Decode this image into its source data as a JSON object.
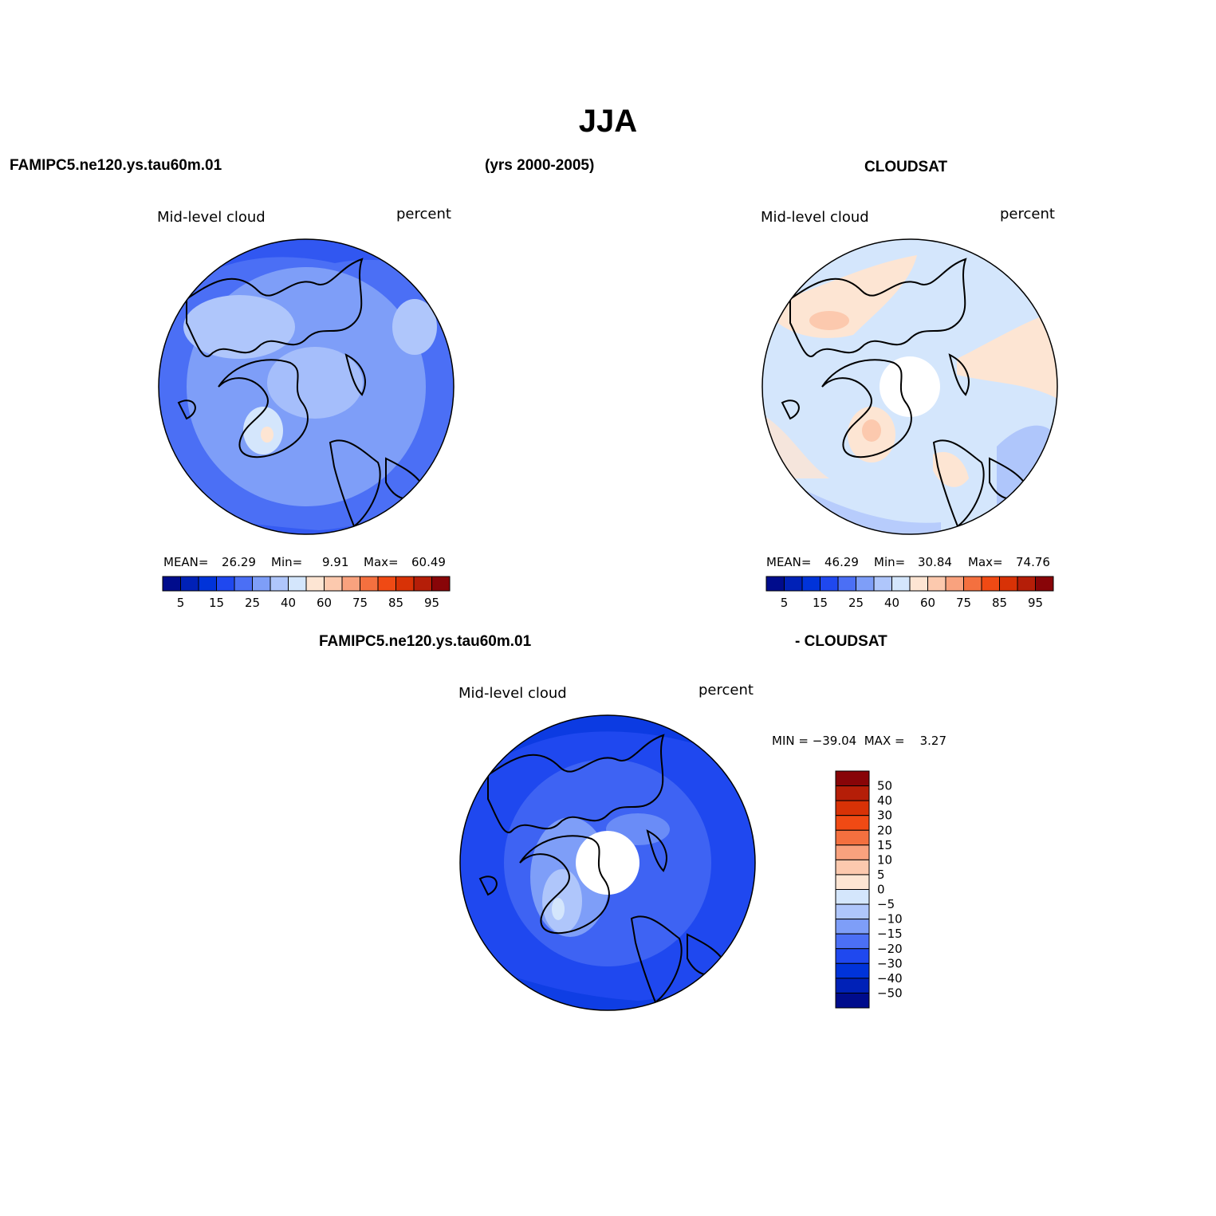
{
  "title": "JJA",
  "header": {
    "left_case": "FAMIPC5.ne120.ys.tau60m.01",
    "years": "(yrs 2000-2005)",
    "right_case": "CLOUDSAT"
  },
  "panels": [
    {
      "variable": "Mid-level cloud",
      "units": "percent",
      "stats": {
        "mean_label": "MEAN=",
        "mean": "26.29",
        "min_label": "Min=",
        "min": "9.91",
        "max_label": "Max=",
        "max": "60.49"
      }
    },
    {
      "variable": "Mid-level cloud",
      "units": "percent",
      "stats": {
        "mean_label": "MEAN=",
        "mean": "46.29",
        "min_label": "Min=",
        "min": "30.84",
        "max_label": "Max=",
        "max": "74.76"
      }
    }
  ],
  "diff_panel": {
    "case_label": "FAMIPC5.ne120.ys.tau60m.01",
    "minus_label": "- CLOUDSAT",
    "variable": "Mid-level cloud",
    "units": "percent",
    "minmax": "MIN = −39.04  MAX =    3.27"
  },
  "colorbar_abs": {
    "colors": [
      "#000c8c",
      "#0021b7",
      "#0033d9",
      "#1f48ef",
      "#4b6ff5",
      "#7e9ef8",
      "#afc6fb",
      "#d4e6fc",
      "#fde5d3",
      "#fcc9ae",
      "#f9a27e",
      "#f4703f",
      "#f04a14",
      "#d83206",
      "#b51e08",
      "#880508"
    ],
    "tick_labels": [
      "5",
      "15",
      "25",
      "40",
      "60",
      "75",
      "85",
      "95"
    ]
  },
  "colorbar_diff": {
    "colors": [
      "#880508",
      "#b51e08",
      "#d83206",
      "#f04a14",
      "#f4703f",
      "#f9a27e",
      "#fcc9ae",
      "#fde5d3",
      "#d4e6fc",
      "#afc6fb",
      "#7e9ef8",
      "#4b6ff5",
      "#1f48ef",
      "#0033d9",
      "#0021b7",
      "#000c8c"
    ],
    "tick_labels": [
      "50",
      "40",
      "30",
      "20",
      "15",
      "10",
      "5",
      "0",
      "−5",
      "−10",
      "−15",
      "−20",
      "−30",
      "−40",
      "−50"
    ]
  }
}
